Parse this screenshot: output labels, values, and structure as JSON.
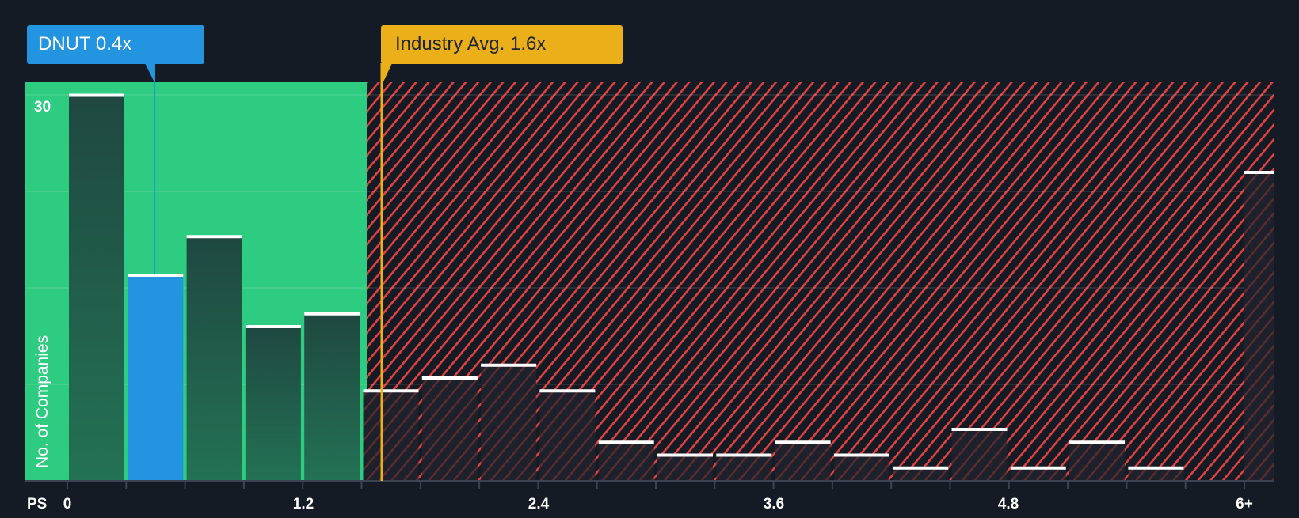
{
  "callouts": {
    "company": {
      "label": "DNUT 0.4x",
      "value": 0.4,
      "color": "#2394df"
    },
    "industry": {
      "label": "Industry Avg. 1.6x",
      "value": 1.6,
      "color": "#ebb019"
    }
  },
  "axes": {
    "x_prefix": "PS",
    "x_ticks": [
      "0",
      "1.2",
      "2.4",
      "3.6",
      "4.8",
      "6+"
    ],
    "y_label": "No. of Companies",
    "y_tick": "30"
  },
  "colors": {
    "background": "#151b24",
    "undervalued_zone": "#2ecc80",
    "bar_green": "#1f4a3f",
    "company_bar": "#2394df",
    "overvalued_hatch": "#e0403f",
    "bar_dark": "#1c212b",
    "industry_line": "#ebb019"
  },
  "chart_data": {
    "type": "bar",
    "title": "",
    "xlabel": "PS",
    "ylabel": "No. of Companies",
    "categories": [
      "0-0.3",
      "0.3-0.6",
      "0.6-0.9",
      "0.9-1.2",
      "1.2-1.5",
      "1.5-1.8",
      "1.8-2.1",
      "2.1-2.4",
      "2.4-2.7",
      "2.7-3.0",
      "3.0-3.3",
      "3.3-3.6",
      "3.6-3.9",
      "3.9-4.2",
      "4.2-4.5",
      "4.5-4.8",
      "4.8-5.1",
      "5.1-5.4",
      "5.4-5.7",
      "6+"
    ],
    "values": [
      30,
      16,
      19,
      12,
      13,
      7,
      8,
      9,
      7,
      3,
      2,
      2,
      3,
      2,
      1,
      4,
      1,
      3,
      1,
      24
    ],
    "highlight_index": 1,
    "x_ticks": [
      0,
      1.2,
      2.4,
      3.6,
      4.8,
      "6+"
    ],
    "ylim": [
      0,
      31
    ],
    "y_gridlines": [
      0,
      7.5,
      15,
      22.5,
      30
    ],
    "annotations": [
      {
        "label": "DNUT 0.4x",
        "x": 0.4
      },
      {
        "label": "Industry Avg. 1.6x",
        "x": 1.6
      }
    ],
    "undervalued_zone_end": 1.52,
    "grid": true,
    "legend": "none"
  }
}
